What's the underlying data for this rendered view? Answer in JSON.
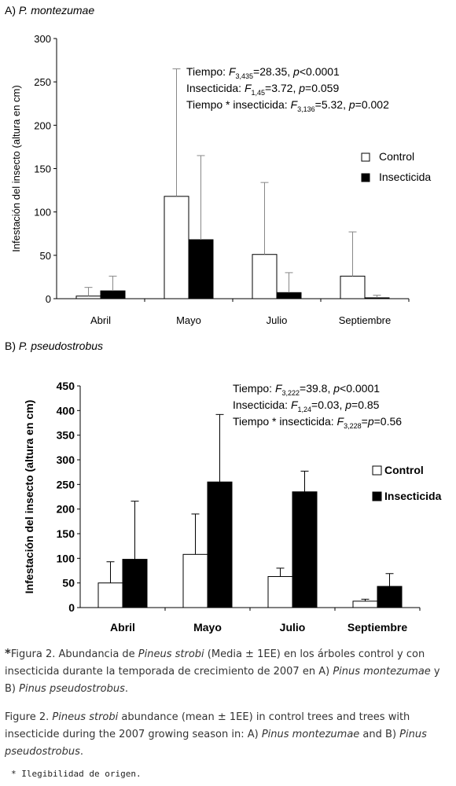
{
  "chart_data": [
    {
      "type": "bar",
      "title_prefix": "A)",
      "title_species": "P. montezumae",
      "ylabel": "Infestación del insecto (altura en cm)",
      "ylim": [
        0,
        300
      ],
      "yticks": [
        0,
        50,
        100,
        150,
        200,
        250,
        300
      ],
      "categories": [
        "Abril",
        "Mayo",
        "Julio",
        "Septiembre"
      ],
      "series": [
        {
          "name": "Control",
          "color": "#ffffff",
          "values": [
            3,
            118,
            51,
            26
          ],
          "errors": [
            10,
            147,
            83,
            51
          ]
        },
        {
          "name": "Insecticida",
          "color": "#000000",
          "values": [
            9,
            68,
            7,
            1
          ],
          "errors": [
            17,
            97,
            23,
            3
          ]
        }
      ],
      "annotations": [
        {
          "label": "Tiempo: ",
          "f": "F",
          "sub": "3,435",
          "rest": "=28.35, ",
          "p": "p",
          "prest": "<0.0001"
        },
        {
          "label": "Insecticida: ",
          "f": "F",
          "sub": "1,45",
          "rest": "=3.72, ",
          "p": "p",
          "prest": "=0.059"
        },
        {
          "label": "Tiempo * insecticida: ",
          "f": "F",
          "sub": "3,136",
          "rest": "=5.32, ",
          "p": "p",
          "prest": "=0.002"
        }
      ],
      "legend_position": "right",
      "grid": false
    },
    {
      "type": "bar",
      "title_prefix": "B)",
      "title_species": "P. pseudostrobus",
      "ylabel": "Infestación del insecto (altura en cm)",
      "ylim": [
        0,
        450
      ],
      "yticks": [
        0,
        50,
        100,
        150,
        200,
        250,
        300,
        350,
        400,
        450
      ],
      "categories": [
        "Abril",
        "Mayo",
        "Julio",
        "Septiembre"
      ],
      "series": [
        {
          "name": "Control",
          "color": "#ffffff",
          "values": [
            50,
            108,
            63,
            13
          ],
          "errors": [
            43,
            82,
            17,
            4
          ]
        },
        {
          "name": "Insecticida",
          "color": "#000000",
          "values": [
            98,
            255,
            235,
            43
          ],
          "errors": [
            118,
            137,
            42,
            26
          ]
        }
      ],
      "annotations": [
        {
          "label": "Tiempo: ",
          "f": "F",
          "sub": "3,222",
          "rest": "=39.8, ",
          "p": "p",
          "prest": "<0.0001"
        },
        {
          "label": "Insecticida: ",
          "f": "F",
          "sub": "1,24",
          "rest": "=0.03, ",
          "p": "p",
          "prest": "=0.85"
        },
        {
          "label": "Tiempo * insecticida: ",
          "f": "F",
          "sub": "3,228",
          "rest": "=",
          "p": "p",
          "prest": "=0.56"
        }
      ],
      "legend_position": "right",
      "grid": false
    }
  ],
  "caption_es": {
    "star": "*",
    "part1": "Figura 2. Abundancia de ",
    "species1": "Pineus strobi",
    "part2": " (Media ± 1EE) en los árboles control y con insecticida durante la temporada de crecimiento de  2007 en A) ",
    "species2": "Pinus montezumae",
    "part3": " y B) ",
    "species3": "Pinus pseudostrobus",
    "part4": "."
  },
  "caption_en": {
    "part1": "Figure 2. ",
    "species1": "Pineus strobi",
    "part2": " abundance (mean ± 1EE) in control trees and trees with insecticide during the 2007 growing season in: A) ",
    "species2": "Pinus  montezumae",
    "part3": " and B) ",
    "species3": "Pinus pseudostrobus",
    "part4": "."
  },
  "note": "* Ilegibilidad de origen."
}
